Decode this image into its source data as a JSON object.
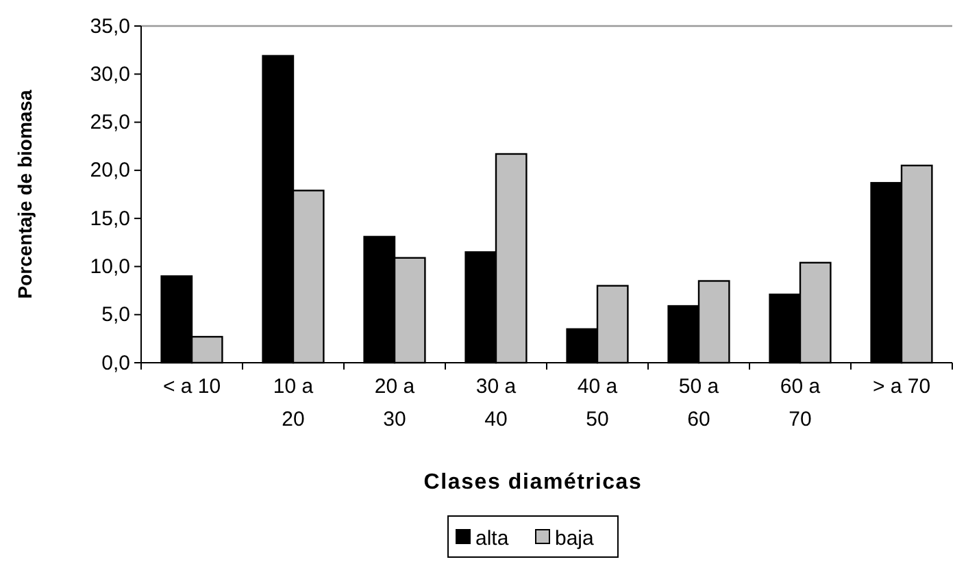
{
  "chart_data": {
    "type": "bar",
    "xlabel": "Clases diamétricas",
    "ylabel": "Porcentaje de biomasa",
    "categories": [
      "< a 10",
      "10 a 20",
      "20 a 30",
      "30 a 40",
      "40 a 50",
      "50 a 60",
      "60 a 70",
      "> a 70"
    ],
    "series": [
      {
        "name": "alta",
        "color": "#000000",
        "values": [
          9.0,
          31.9,
          13.1,
          11.5,
          3.5,
          5.9,
          7.1,
          18.7
        ]
      },
      {
        "name": "baja",
        "color": "#c0c0c0",
        "values": [
          2.7,
          17.9,
          10.9,
          21.7,
          8.0,
          8.5,
          10.4,
          20.5
        ]
      }
    ],
    "ylim": [
      0,
      35
    ],
    "yticks": [
      {
        "value": 0,
        "label": "0,0"
      },
      {
        "value": 5,
        "label": "5,0"
      },
      {
        "value": 10,
        "label": "10,0"
      },
      {
        "value": 15,
        "label": "15,0"
      },
      {
        "value": 20,
        "label": "20,0"
      },
      {
        "value": 25,
        "label": "25,0"
      },
      {
        "value": 30,
        "label": "30,0"
      },
      {
        "value": 35,
        "label": "35,0"
      }
    ],
    "grid": false,
    "legend": "bottom"
  }
}
